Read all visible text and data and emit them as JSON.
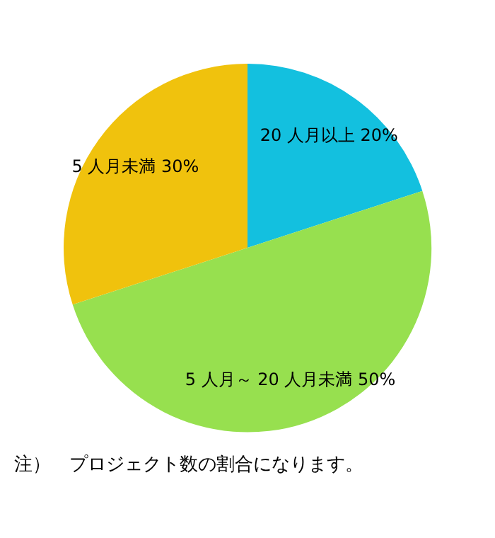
{
  "chart_data": {
    "type": "pie",
    "categories": [
      "20 人月以上",
      "5 人月～ 20 人月未満",
      "5 人月未満"
    ],
    "values": [
      20,
      50,
      30
    ],
    "value_labels": [
      "20%",
      "50%",
      "30%"
    ],
    "colors": [
      "#13c0df",
      "#97e04f",
      "#f0c20d"
    ],
    "annotations": [
      "注）　プロジェクト数の割合になります。"
    ]
  }
}
